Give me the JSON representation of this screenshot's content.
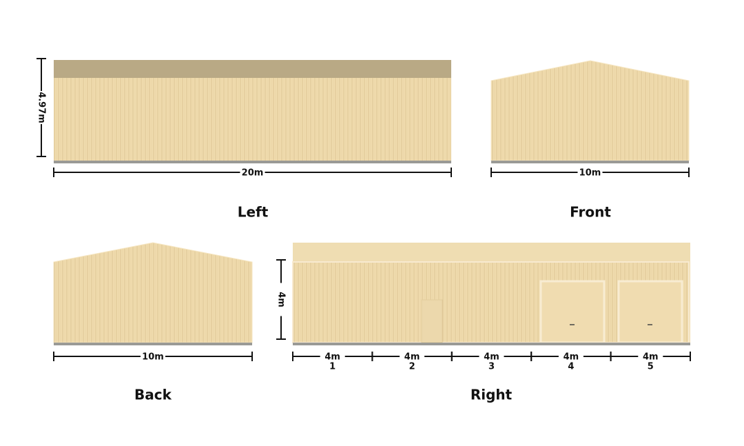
{
  "views": [
    {
      "name": "Left",
      "width_label": "20m",
      "height_label": "4.97m"
    },
    {
      "name": "Front",
      "width_label": "10m"
    },
    {
      "name": "Back",
      "width_label": "10m"
    },
    {
      "name": "Right",
      "height_label": "4m",
      "bays": [
        {
          "width_label": "4m",
          "number": "1"
        },
        {
          "width_label": "4m",
          "number": "2"
        },
        {
          "width_label": "4m",
          "number": "3"
        },
        {
          "width_label": "4m",
          "number": "4"
        },
        {
          "width_label": "4m",
          "number": "5"
        }
      ]
    }
  ]
}
